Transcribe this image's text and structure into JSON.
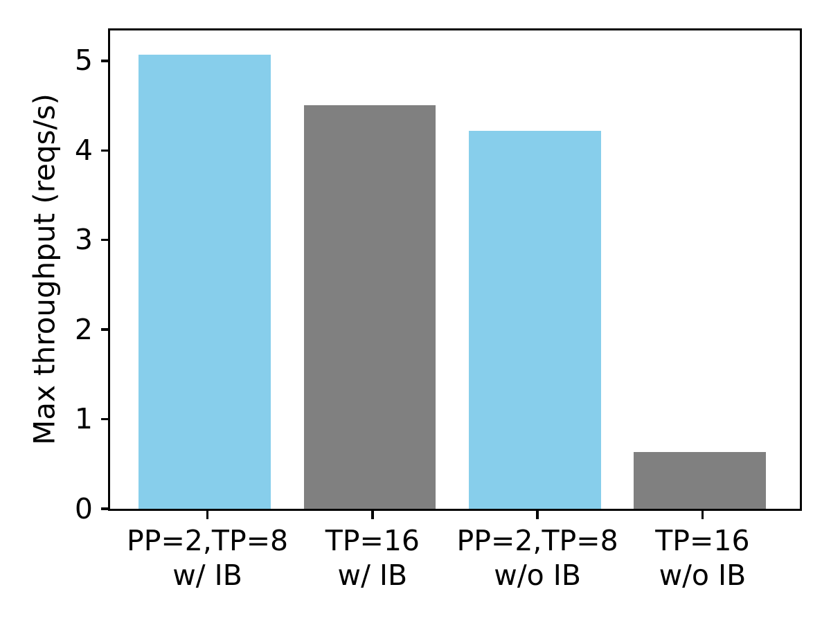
{
  "chart_data": {
    "type": "bar",
    "title": "",
    "xlabel": "",
    "ylabel": "Max throughput (reqs/s)",
    "categories": [
      {
        "line1": "PP=2,TP=8",
        "line2": "w/ IB"
      },
      {
        "line1": "TP=16",
        "line2": "w/ IB"
      },
      {
        "line1": "PP=2,TP=8",
        "line2": "w/o IB"
      },
      {
        "line1": "TP=16",
        "line2": "w/o IB"
      }
    ],
    "values": [
      5.07,
      4.51,
      4.22,
      0.64
    ],
    "bar_colors": [
      "#87ceeb",
      "#808080",
      "#87ceeb",
      "#808080"
    ],
    "bar_width": 0.8,
    "yticks": [
      0,
      1,
      2,
      3,
      4,
      5
    ],
    "ylim": [
      0,
      5.34
    ],
    "xlim": [
      -0.59,
      3.59
    ],
    "grid": false,
    "legend": null,
    "axis_color": "#000000",
    "background_color": "#ffffff"
  }
}
